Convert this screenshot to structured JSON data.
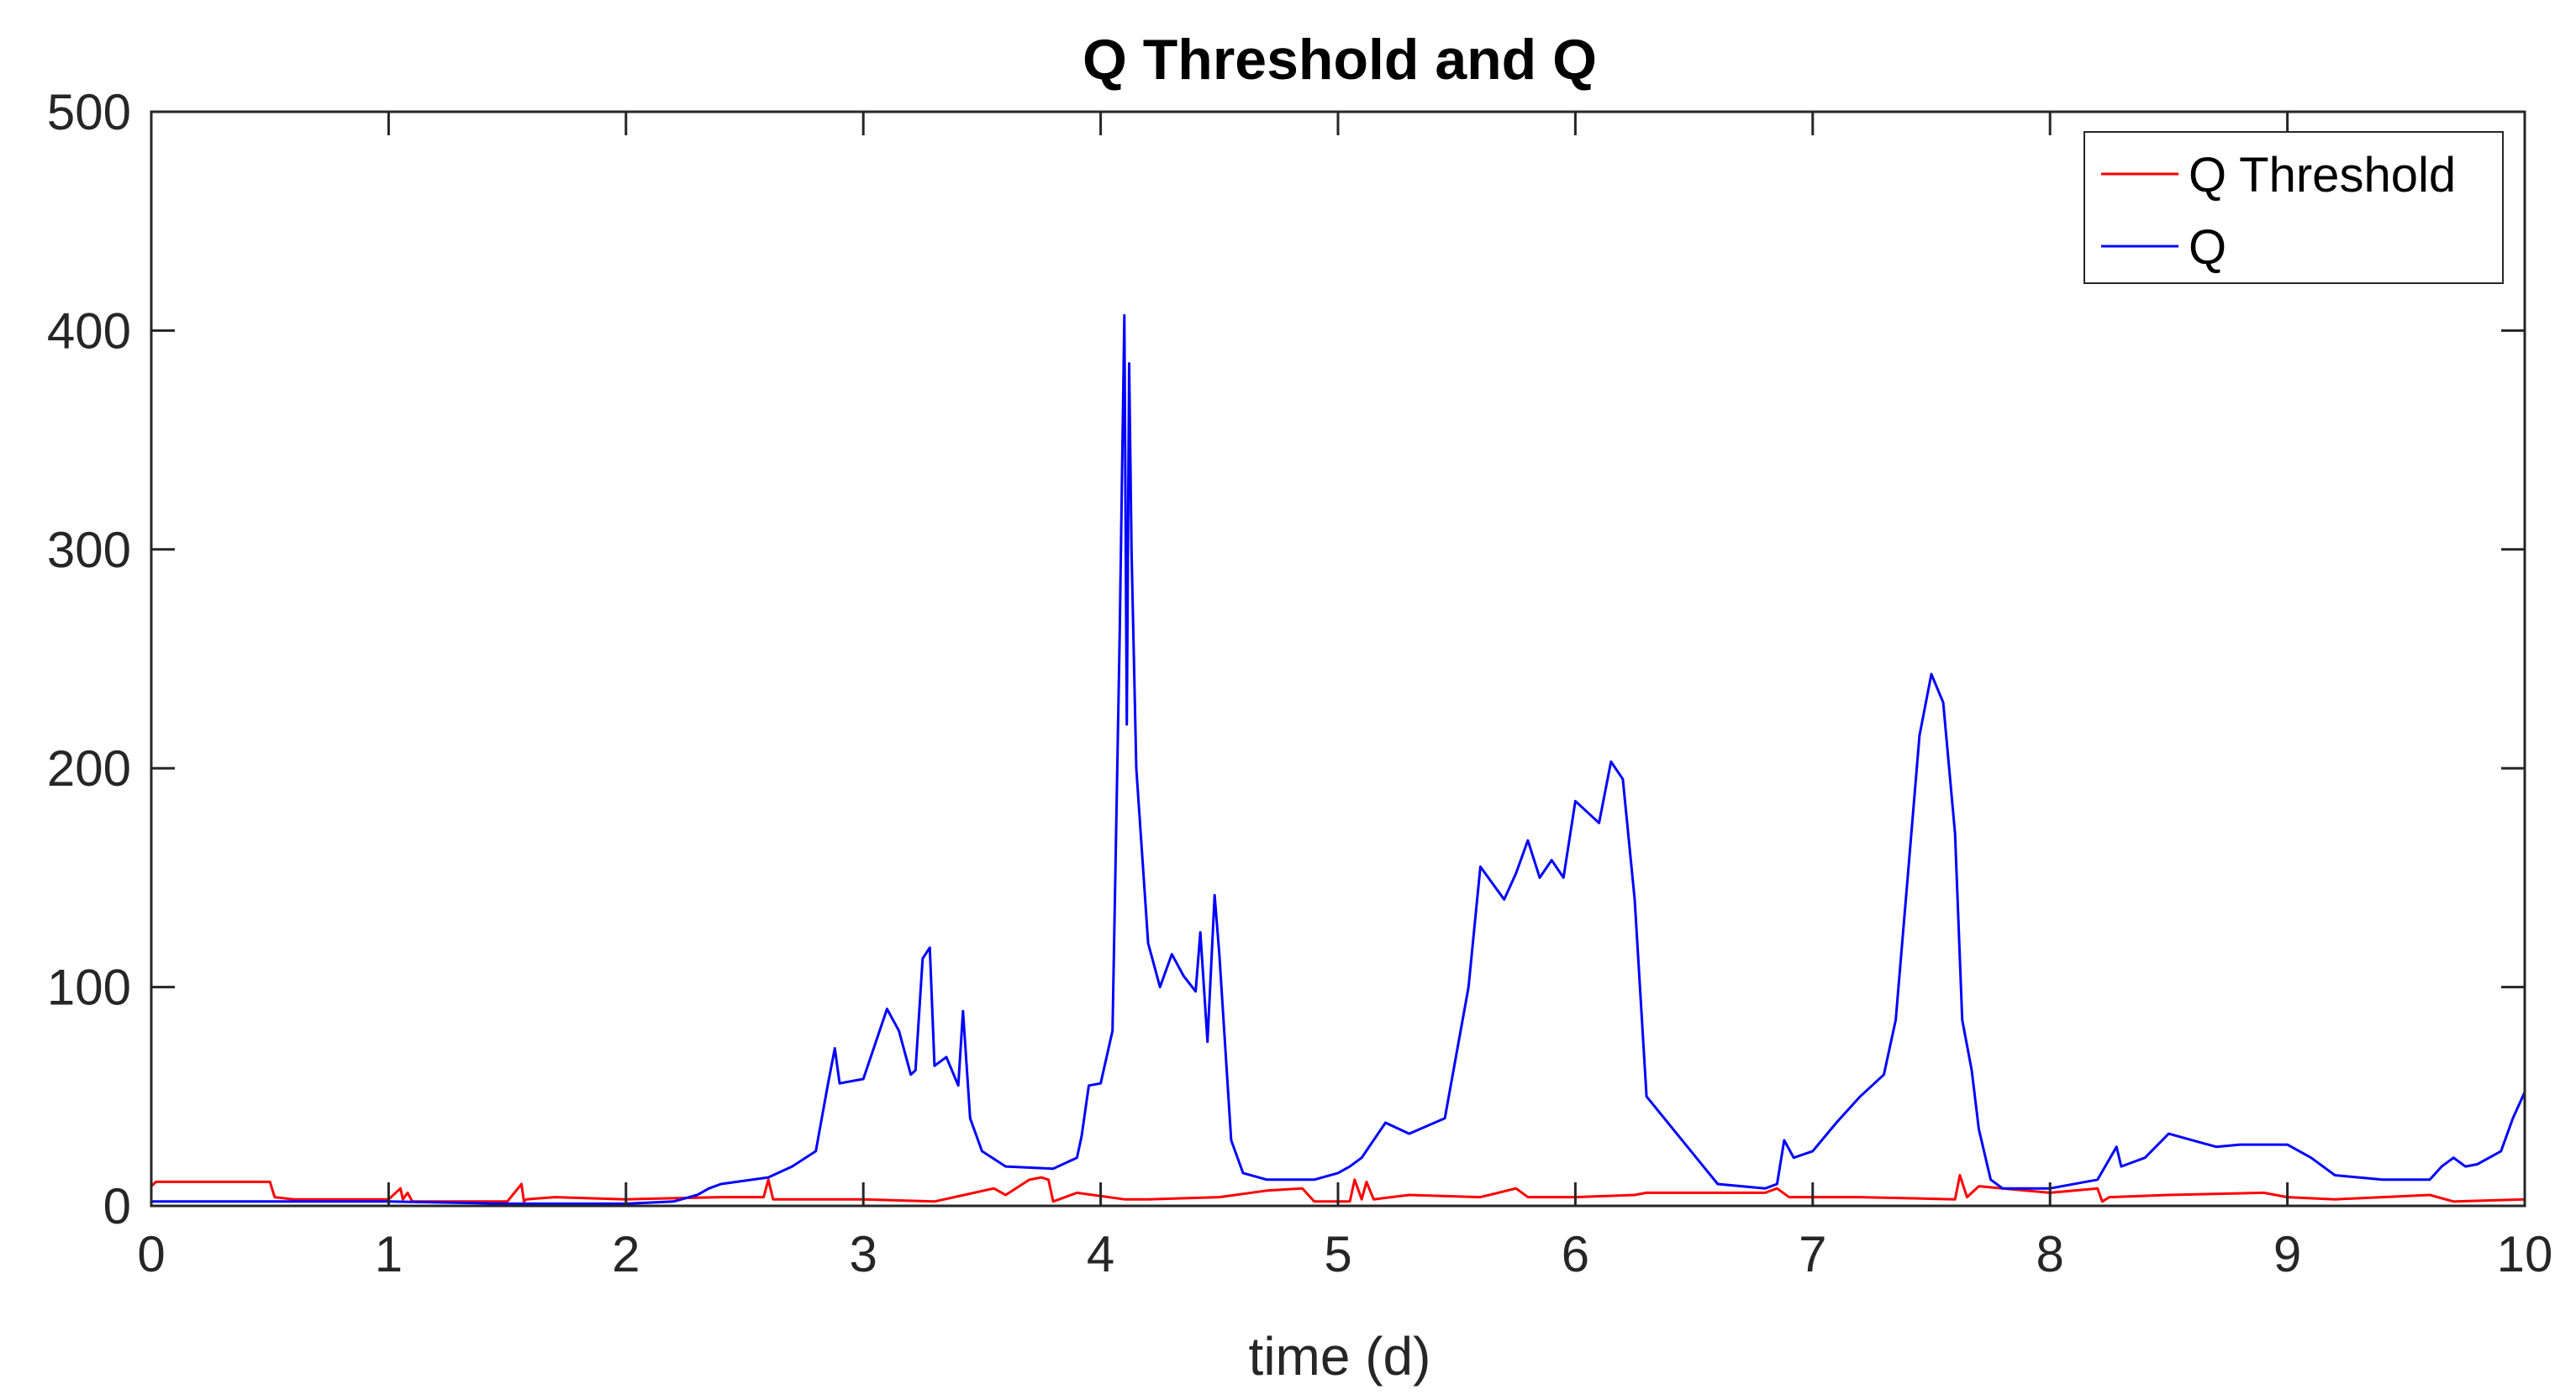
{
  "chart_data": {
    "type": "line",
    "title": "Q Threshold and Q",
    "xlabel": "time (d)",
    "ylabel": "",
    "xlim": [
      0,
      10
    ],
    "ylim": [
      0,
      500
    ],
    "xticks": [
      0,
      1,
      2,
      3,
      4,
      5,
      6,
      7,
      8,
      9,
      10
    ],
    "yticks": [
      0,
      100,
      200,
      300,
      400,
      500
    ],
    "grid": false,
    "legend_position": "top-right",
    "series": [
      {
        "name": "Q Threshold",
        "color": "#ff0000",
        "x": [
          0,
          0.02,
          0.5,
          0.52,
          0.6,
          1.0,
          1.05,
          1.06,
          1.08,
          1.1,
          1.5,
          1.56,
          1.57,
          1.58,
          1.7,
          2.0,
          2.4,
          2.58,
          2.6,
          2.62,
          2.8,
          3.0,
          3.3,
          3.55,
          3.6,
          3.7,
          3.75,
          3.78,
          3.8,
          3.9,
          4.1,
          4.2,
          4.5,
          4.7,
          4.85,
          4.9,
          5.05,
          5.07,
          5.1,
          5.12,
          5.15,
          5.3,
          5.6,
          5.75,
          5.8,
          6.0,
          6.25,
          6.3,
          6.8,
          6.85,
          6.9,
          7.2,
          7.6,
          7.62,
          7.65,
          7.7,
          8.0,
          8.2,
          8.22,
          8.25,
          8.5,
          8.9,
          9.0,
          9.2,
          9.6,
          9.7,
          10.0
        ],
        "y": [
          9,
          11,
          11,
          4,
          3,
          3,
          8,
          3,
          6,
          2,
          2,
          10,
          2,
          3,
          4,
          3,
          4,
          4,
          12,
          3,
          3,
          3,
          2,
          8,
          5,
          12,
          13,
          12,
          2,
          6,
          3,
          3,
          4,
          7,
          8,
          2,
          2,
          12,
          3,
          11,
          3,
          5,
          4,
          8,
          4,
          4,
          5,
          6,
          6,
          8,
          4,
          4,
          3,
          14,
          4,
          9,
          6,
          8,
          2,
          4,
          5,
          6,
          4,
          3,
          5,
          2,
          3
        ]
      },
      {
        "name": "Q",
        "color": "#0000ff",
        "x": [
          0,
          0.5,
          1.0,
          1.5,
          2.0,
          2.2,
          2.3,
          2.35,
          2.4,
          2.6,
          2.7,
          2.8,
          2.85,
          2.88,
          2.9,
          3.0,
          3.1,
          3.15,
          3.2,
          3.22,
          3.25,
          3.28,
          3.3,
          3.35,
          3.4,
          3.42,
          3.45,
          3.5,
          3.6,
          3.8,
          3.9,
          3.92,
          3.95,
          4.0,
          4.05,
          4.08,
          4.1,
          4.11,
          4.12,
          4.13,
          4.15,
          4.2,
          4.25,
          4.3,
          4.35,
          4.4,
          4.42,
          4.45,
          4.48,
          4.5,
          4.55,
          4.6,
          4.7,
          4.9,
          5.0,
          5.05,
          5.1,
          5.2,
          5.3,
          5.45,
          5.5,
          5.55,
          5.6,
          5.7,
          5.75,
          5.8,
          5.85,
          5.9,
          5.95,
          6.0,
          6.1,
          6.15,
          6.2,
          6.25,
          6.3,
          6.6,
          6.8,
          6.85,
          6.88,
          6.92,
          7.0,
          7.1,
          7.2,
          7.3,
          7.35,
          7.4,
          7.45,
          7.5,
          7.55,
          7.6,
          7.63,
          7.67,
          7.7,
          7.75,
          7.8,
          8.0,
          8.2,
          8.28,
          8.3,
          8.4,
          8.5,
          8.6,
          8.7,
          8.8,
          9.0,
          9.1,
          9.2,
          9.4,
          9.6,
          9.65,
          9.7,
          9.75,
          9.8,
          9.9,
          9.95,
          10.0
        ],
        "y": [
          2,
          2,
          2,
          1,
          1,
          2,
          5,
          8,
          10,
          13,
          18,
          25,
          55,
          72,
          56,
          58,
          90,
          80,
          60,
          62,
          113,
          118,
          64,
          68,
          55,
          89,
          40,
          25,
          18,
          17,
          22,
          32,
          55,
          56,
          80,
          260,
          407,
          220,
          385,
          300,
          200,
          120,
          100,
          115,
          105,
          98,
          125,
          75,
          142,
          115,
          30,
          15,
          12,
          12,
          15,
          18,
          22,
          38,
          33,
          40,
          70,
          100,
          155,
          140,
          152,
          167,
          150,
          158,
          150,
          185,
          175,
          203,
          195,
          140,
          50,
          10,
          8,
          10,
          30,
          22,
          25,
          38,
          50,
          60,
          85,
          150,
          215,
          243,
          230,
          170,
          85,
          62,
          35,
          12,
          8,
          8,
          12,
          27,
          18,
          22,
          33,
          30,
          27,
          28,
          28,
          22,
          14,
          12,
          12,
          18,
          22,
          18,
          19,
          25,
          40,
          52
        ]
      }
    ]
  }
}
